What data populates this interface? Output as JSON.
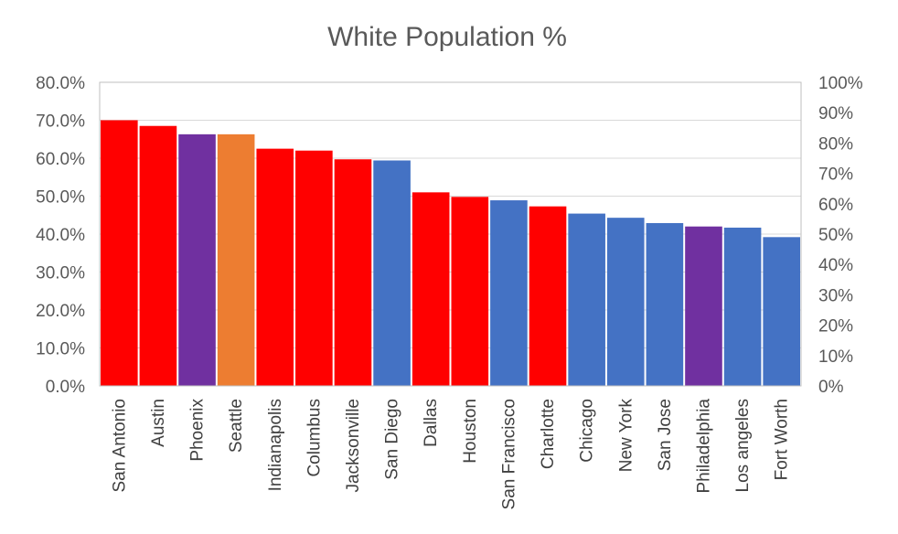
{
  "chart_data": {
    "type": "bar",
    "title": "White Population %",
    "categories": [
      "San Antonio",
      "Austin",
      "Phoenix",
      "Seattle",
      "Indianapolis",
      "Columbus",
      "Jacksonville",
      "San Diego",
      "Dallas",
      "Houston",
      "San Francisco",
      "Charlotte",
      "Chicago",
      "New York",
      "San Jose",
      "Philadelphia",
      "Los angeles",
      "Fort Worth"
    ],
    "values": [
      70.0,
      68.5,
      66.3,
      66.3,
      62.5,
      62.0,
      59.7,
      59.4,
      51.0,
      49.8,
      48.9,
      47.3,
      45.4,
      44.3,
      42.9,
      42.0,
      41.7,
      39.2
    ],
    "colors": [
      "#ff0000",
      "#ff0000",
      "#7030a0",
      "#ed7d31",
      "#ff0000",
      "#ff0000",
      "#ff0000",
      "#4472c4",
      "#ff0000",
      "#ff0000",
      "#4472c4",
      "#ff0000",
      "#4472c4",
      "#4472c4",
      "#4472c4",
      "#7030a0",
      "#4472c4",
      "#4472c4"
    ],
    "y_left": {
      "min": 0,
      "max": 80,
      "step": 10,
      "tick_labels": [
        "0.0%",
        "10.0%",
        "20.0%",
        "30.0%",
        "40.0%",
        "50.0%",
        "60.0%",
        "70.0%",
        "80.0%"
      ]
    },
    "y_right": {
      "min": 0,
      "max": 100,
      "step": 10,
      "tick_labels": [
        "0%",
        "10%",
        "20%",
        "30%",
        "40%",
        "50%",
        "60%",
        "70%",
        "80%",
        "90%",
        "100%"
      ]
    },
    "grid": true,
    "legend": "none"
  }
}
